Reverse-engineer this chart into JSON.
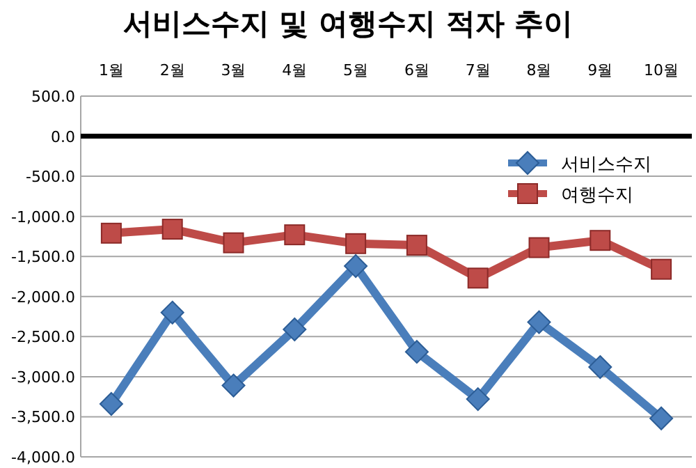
{
  "chart_data": {
    "type": "line",
    "title": "서비스수지 및 여행수지 적자 추이",
    "categories": [
      "1월",
      "2월",
      "3월",
      "4월",
      "5월",
      "6월",
      "7월",
      "8월",
      "9월",
      "10월"
    ],
    "series": [
      {
        "name": "서비스수지",
        "color": "#4a7ebb",
        "marker": "diamond",
        "values": [
          -3340,
          -2200,
          -3110,
          -2410,
          -1620,
          -2690,
          -3280,
          -2320,
          -2880,
          -3520
        ]
      },
      {
        "name": "여행수지",
        "color": "#be4b48",
        "marker": "square",
        "values": [
          -1210,
          -1160,
          -1330,
          -1230,
          -1340,
          -1360,
          -1770,
          -1390,
          -1300,
          -1660
        ]
      }
    ],
    "ylim": [
      -4000,
      500
    ],
    "yticks": [
      {
        "value": 500,
        "label": "500.0"
      },
      {
        "value": 0,
        "label": "0.0"
      },
      {
        "value": -500,
        "label": "-500.0"
      },
      {
        "value": -1000,
        "label": "-1,000.0"
      },
      {
        "value": -1500,
        "label": "-1,500.0"
      },
      {
        "value": -2000,
        "label": "-2,000.0"
      },
      {
        "value": -2500,
        "label": "-2,500.0"
      },
      {
        "value": -3000,
        "label": "-3,000.0"
      },
      {
        "value": -3500,
        "label": "-3,500.0"
      },
      {
        "value": -4000,
        "label": "-4,000.0"
      }
    ],
    "ref_lines": [
      {
        "axis": "y",
        "value": 0,
        "color": "#000000"
      }
    ],
    "grid": "y",
    "legend": "top right"
  }
}
